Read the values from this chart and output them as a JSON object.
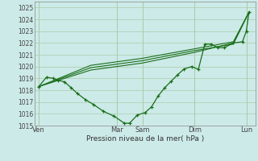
{
  "background_color": "#cceae8",
  "grid_color": "#aaccaa",
  "line_color": "#1a6e1a",
  "ylim": [
    1015,
    1025.5
  ],
  "yticks": [
    1015,
    1016,
    1017,
    1018,
    1019,
    1020,
    1021,
    1022,
    1023,
    1024,
    1025
  ],
  "xlabel": "Pression niveau de la mer( hPa )",
  "xtick_labels": [
    "Ven",
    "Mar",
    "Sam",
    "Dim",
    "Lun"
  ],
  "xtick_positions": [
    0,
    3,
    4,
    6,
    8
  ],
  "vline_positions": [
    0,
    3,
    4,
    6,
    8
  ],
  "line1_x": [
    0.0,
    0.3,
    0.55,
    0.75,
    1.0,
    1.25,
    1.5,
    1.8,
    2.1,
    2.5,
    2.9,
    3.3,
    3.5,
    3.8,
    4.1,
    4.35,
    4.6,
    4.85,
    5.1,
    5.35,
    5.6,
    5.9,
    6.15,
    6.4,
    6.65,
    6.9,
    7.15,
    7.5,
    7.85,
    8.0,
    8.1
  ],
  "line1_y": [
    1018.3,
    1019.1,
    1019.0,
    1018.85,
    1018.7,
    1018.2,
    1017.7,
    1017.2,
    1016.8,
    1016.2,
    1015.8,
    1015.2,
    1015.2,
    1015.9,
    1016.1,
    1016.6,
    1017.5,
    1018.2,
    1018.75,
    1019.3,
    1019.8,
    1020.0,
    1019.75,
    1021.9,
    1021.9,
    1021.6,
    1021.6,
    1022.0,
    1022.1,
    1023.0,
    1024.6
  ],
  "line2_x": [
    0.0,
    2.0,
    4.0,
    6.0,
    7.5,
    8.1
  ],
  "line2_y": [
    1018.3,
    1019.7,
    1020.3,
    1021.2,
    1022.0,
    1024.6
  ],
  "line3_x": [
    0.0,
    2.0,
    4.0,
    6.0,
    7.5,
    8.1
  ],
  "line3_y": [
    1018.3,
    1019.9,
    1020.5,
    1021.35,
    1021.9,
    1024.6
  ],
  "line4_x": [
    0.0,
    2.0,
    4.0,
    6.0,
    7.5,
    8.1
  ],
  "line4_y": [
    1018.3,
    1020.1,
    1020.7,
    1021.5,
    1022.1,
    1024.6
  ]
}
